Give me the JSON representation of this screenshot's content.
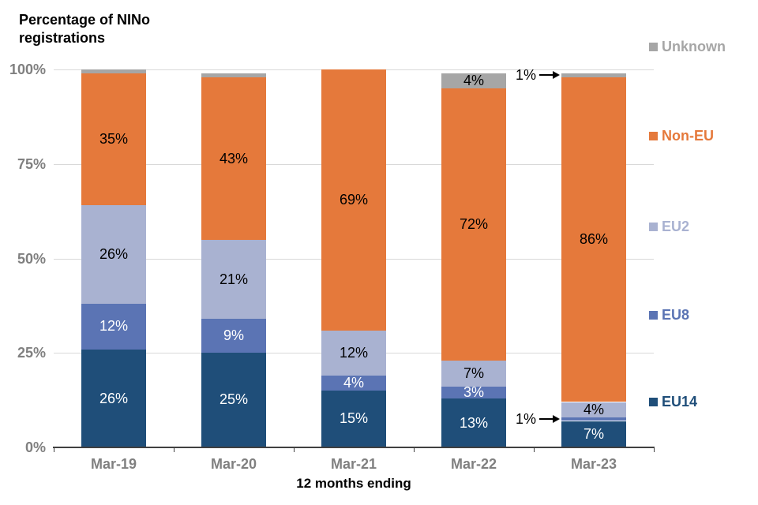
{
  "title": "Percentage of NINo registrations",
  "chart_data": {
    "type": "bar",
    "subtype": "stacked-percentage-column",
    "title": "Percentage of NINo registrations",
    "xlabel": "12 months ending",
    "ylabel": "Percentage of NINo registrations",
    "ylim": [
      0,
      100
    ],
    "grid": true,
    "legend_position": "right",
    "y_ticks": [
      "0%",
      "25%",
      "50%",
      "75%",
      "100%"
    ],
    "categories": [
      "Mar-19",
      "Mar-20",
      "Mar-21",
      "Mar-22",
      "Mar-23"
    ],
    "series": [
      {
        "name": "EU14",
        "color": "#1f4e79",
        "label_color": "#ffffff",
        "values": [
          26,
          25,
          15,
          13,
          7
        ],
        "labels": [
          "26%",
          "25%",
          "15%",
          "13%",
          "7%"
        ]
      },
      {
        "name": "EU8",
        "color": "#5b74b4",
        "label_color": "#ffffff",
        "values": [
          12,
          9,
          4,
          3,
          1
        ],
        "labels": [
          "12%",
          "9%",
          "4%",
          "3%",
          ""
        ]
      },
      {
        "name": "EU2",
        "color": "#a9b2d1",
        "label_color": "#000000",
        "values": [
          26,
          21,
          12,
          7,
          4
        ],
        "labels": [
          "26%",
          "21%",
          "12%",
          "7%",
          "4%"
        ]
      },
      {
        "name": "Non-EU",
        "color": "#e5793b",
        "label_color": "#000000",
        "values": [
          35,
          43,
          69,
          72,
          86
        ],
        "labels": [
          "35%",
          "43%",
          "69%",
          "72%",
          "86%"
        ]
      },
      {
        "name": "Unknown",
        "color": "#a6a6a6",
        "label_color": "#000000",
        "values": [
          1,
          1,
          0,
          4,
          1
        ],
        "labels": [
          "",
          "",
          "",
          "4%",
          ""
        ]
      }
    ],
    "annotations": [
      {
        "text": "1%",
        "target_series": "Unknown",
        "target_category": "Mar-23",
        "arrow": "right"
      },
      {
        "text": "1%",
        "target_series": "EU8",
        "target_category": "Mar-23",
        "arrow": "right"
      }
    ],
    "legend_items": [
      "Unknown",
      "Non-EU",
      "EU2",
      "EU8",
      "EU14"
    ]
  }
}
